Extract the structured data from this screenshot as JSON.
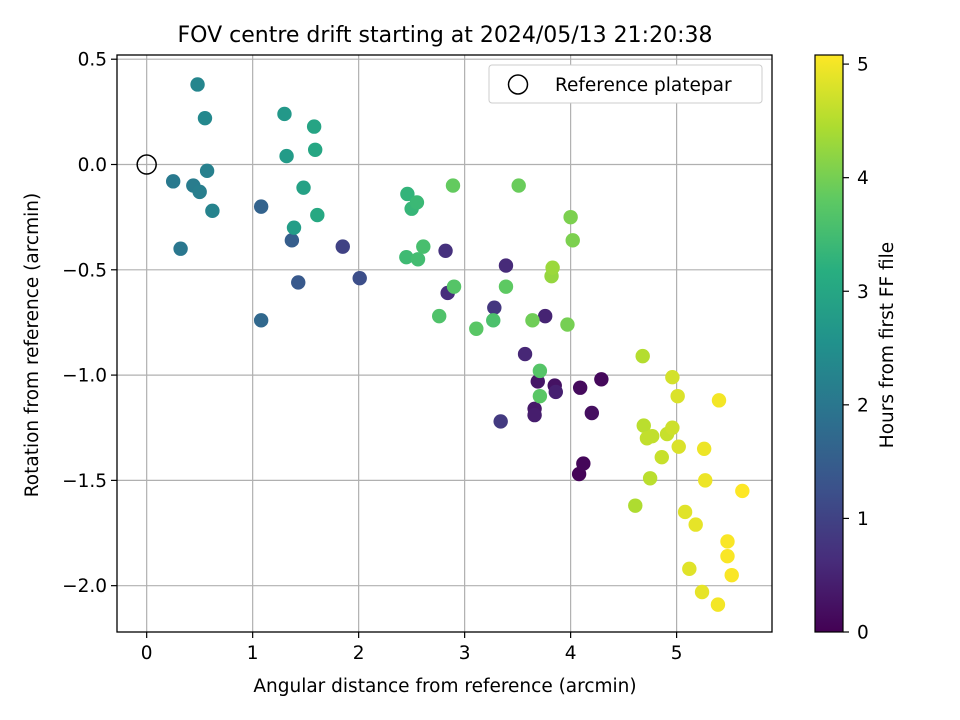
{
  "chart_data": {
    "type": "scatter",
    "title": "FOV centre drift starting at 2024/05/13 21:20:38",
    "xlabel": "Angular distance from reference (arcmin)",
    "ylabel": "Rotation from reference (arcmin)",
    "xlim": [
      -0.28,
      5.9
    ],
    "ylim": [
      -2.22,
      0.52
    ],
    "xticks": [
      0,
      1,
      2,
      3,
      4,
      5
    ],
    "yticks": [
      0.5,
      0.0,
      -0.5,
      -1.0,
      -1.5,
      -2.0
    ],
    "xtick_labels": [
      "0",
      "1",
      "2",
      "3",
      "4",
      "5"
    ],
    "ytick_labels": [
      "0.5",
      "0.0",
      "−0.5",
      "−1.0",
      "−1.5",
      "−2.0"
    ],
    "grid": true,
    "legend": {
      "position": "top-right",
      "entries": [
        {
          "label": "Reference platepar",
          "marker": "open-circle"
        }
      ]
    },
    "reference_point": {
      "x": 0,
      "y": 0
    },
    "colorbar": {
      "label": "Hours from first FF file",
      "colormap": "viridis",
      "range": [
        0,
        5.08
      ],
      "ticks": [
        0,
        1,
        2,
        3,
        4,
        5
      ],
      "tick_labels": [
        "0",
        "1",
        "2",
        "3",
        "4",
        "5"
      ]
    },
    "points": [
      {
        "x": 4.08,
        "y": -1.47,
        "c": 0.05
      },
      {
        "x": 4.12,
        "y": -1.42,
        "c": 0.08
      },
      {
        "x": 4.29,
        "y": -1.02,
        "c": 0.12
      },
      {
        "x": 4.09,
        "y": -1.06,
        "c": 0.15
      },
      {
        "x": 4.2,
        "y": -1.18,
        "c": 0.2
      },
      {
        "x": 3.85,
        "y": -1.05,
        "c": 0.25
      },
      {
        "x": 3.69,
        "y": -1.03,
        "c": 0.3
      },
      {
        "x": 3.66,
        "y": -1.16,
        "c": 0.35
      },
      {
        "x": 3.66,
        "y": -1.19,
        "c": 0.4
      },
      {
        "x": 3.86,
        "y": -1.08,
        "c": 0.45
      },
      {
        "x": 3.76,
        "y": -0.72,
        "c": 0.5
      },
      {
        "x": 3.57,
        "y": -0.9,
        "c": 0.55
      },
      {
        "x": 3.39,
        "y": -0.48,
        "c": 0.6
      },
      {
        "x": 2.84,
        "y": -0.61,
        "c": 0.65
      },
      {
        "x": 2.82,
        "y": -0.41,
        "c": 0.7
      },
      {
        "x": 3.28,
        "y": -0.68,
        "c": 0.8
      },
      {
        "x": 3.34,
        "y": -1.22,
        "c": 0.85
      },
      {
        "x": 1.85,
        "y": -0.39,
        "c": 1.0
      },
      {
        "x": 2.01,
        "y": -0.54,
        "c": 1.2
      },
      {
        "x": 1.43,
        "y": -0.56,
        "c": 1.4
      },
      {
        "x": 1.37,
        "y": -0.36,
        "c": 1.5
      },
      {
        "x": 1.08,
        "y": -0.2,
        "c": 1.6
      },
      {
        "x": 1.08,
        "y": -0.74,
        "c": 1.7
      },
      {
        "x": 0.32,
        "y": -0.4,
        "c": 2.0
      },
      {
        "x": 0.25,
        "y": -0.08,
        "c": 2.05
      },
      {
        "x": 0.44,
        "y": -0.1,
        "c": 2.1
      },
      {
        "x": 0.5,
        "y": -0.13,
        "c": 2.15
      },
      {
        "x": 0.57,
        "y": -0.03,
        "c": 2.2
      },
      {
        "x": 0.62,
        "y": -0.22,
        "c": 2.25
      },
      {
        "x": 0.48,
        "y": 0.38,
        "c": 2.3
      },
      {
        "x": 0.55,
        "y": 0.22,
        "c": 2.35
      },
      {
        "x": 1.3,
        "y": 0.24,
        "c": 2.7
      },
      {
        "x": 1.32,
        "y": 0.04,
        "c": 2.75
      },
      {
        "x": 1.39,
        "y": -0.3,
        "c": 2.8
      },
      {
        "x": 1.48,
        "y": -0.11,
        "c": 2.9
      },
      {
        "x": 1.58,
        "y": 0.18,
        "c": 2.95
      },
      {
        "x": 1.59,
        "y": 0.07,
        "c": 3.0
      },
      {
        "x": 1.61,
        "y": -0.24,
        "c": 3.05
      },
      {
        "x": 2.46,
        "y": -0.14,
        "c": 3.3
      },
      {
        "x": 2.5,
        "y": -0.21,
        "c": 3.35
      },
      {
        "x": 2.55,
        "y": -0.18,
        "c": 3.4
      },
      {
        "x": 2.45,
        "y": -0.44,
        "c": 3.45
      },
      {
        "x": 2.56,
        "y": -0.45,
        "c": 3.5
      },
      {
        "x": 2.61,
        "y": -0.39,
        "c": 3.55
      },
      {
        "x": 3.27,
        "y": -0.74,
        "c": 3.6
      },
      {
        "x": 2.76,
        "y": -0.72,
        "c": 3.65
      },
      {
        "x": 2.9,
        "y": -0.58,
        "c": 3.7
      },
      {
        "x": 3.11,
        "y": -0.78,
        "c": 3.75
      },
      {
        "x": 3.39,
        "y": -0.58,
        "c": 3.8
      },
      {
        "x": 2.89,
        "y": -0.1,
        "c": 3.85
      },
      {
        "x": 3.51,
        "y": -0.1,
        "c": 3.9
      },
      {
        "x": 3.71,
        "y": -0.98,
        "c": 3.7
      },
      {
        "x": 3.71,
        "y": -1.1,
        "c": 3.75
      },
      {
        "x": 3.64,
        "y": -0.74,
        "c": 3.95
      },
      {
        "x": 3.97,
        "y": -0.76,
        "c": 4.0
      },
      {
        "x": 4.0,
        "y": -0.25,
        "c": 4.05
      },
      {
        "x": 4.02,
        "y": -0.36,
        "c": 4.05
      },
      {
        "x": 3.82,
        "y": -0.53,
        "c": 4.25
      },
      {
        "x": 3.83,
        "y": -0.49,
        "c": 4.3
      },
      {
        "x": 4.61,
        "y": -1.62,
        "c": 4.45
      },
      {
        "x": 4.68,
        "y": -0.91,
        "c": 4.5
      },
      {
        "x": 4.69,
        "y": -1.24,
        "c": 4.55
      },
      {
        "x": 4.72,
        "y": -1.3,
        "c": 4.6
      },
      {
        "x": 4.77,
        "y": -1.29,
        "c": 4.6
      },
      {
        "x": 4.75,
        "y": -1.49,
        "c": 4.55
      },
      {
        "x": 4.86,
        "y": -1.39,
        "c": 4.65
      },
      {
        "x": 4.91,
        "y": -1.28,
        "c": 4.65
      },
      {
        "x": 4.96,
        "y": -1.25,
        "c": 4.7
      },
      {
        "x": 4.96,
        "y": -1.01,
        "c": 4.75
      },
      {
        "x": 5.01,
        "y": -1.1,
        "c": 4.8
      },
      {
        "x": 5.02,
        "y": -1.34,
        "c": 4.8
      },
      {
        "x": 5.08,
        "y": -1.65,
        "c": 4.85
      },
      {
        "x": 5.12,
        "y": -1.92,
        "c": 4.85
      },
      {
        "x": 5.18,
        "y": -1.71,
        "c": 4.9
      },
      {
        "x": 5.24,
        "y": -2.03,
        "c": 4.9
      },
      {
        "x": 5.26,
        "y": -1.35,
        "c": 4.95
      },
      {
        "x": 5.27,
        "y": -1.5,
        "c": 4.95
      },
      {
        "x": 5.39,
        "y": -2.09,
        "c": 5.0
      },
      {
        "x": 5.4,
        "y": -1.12,
        "c": 5.0
      },
      {
        "x": 5.48,
        "y": -1.79,
        "c": 5.05
      },
      {
        "x": 5.48,
        "y": -1.86,
        "c": 5.05
      },
      {
        "x": 5.52,
        "y": -1.95,
        "c": 5.05
      },
      {
        "x": 5.62,
        "y": -1.55,
        "c": 5.08
      }
    ]
  }
}
